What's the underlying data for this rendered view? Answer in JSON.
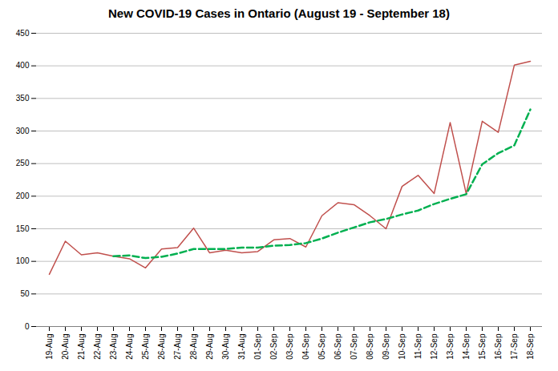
{
  "chart_data": {
    "type": "line",
    "title": "New COVID-19 Cases in Ontario (August 19 - September 18)",
    "categories": [
      "19-Aug",
      "20-Aug",
      "21-Aug",
      "22-Aug",
      "23-Aug",
      "24-Aug",
      "25-Aug",
      "26-Aug",
      "27-Aug",
      "28-Aug",
      "29-Aug",
      "30-Aug",
      "31-Aug",
      "01-Sep",
      "02-Sep",
      "03-Sep",
      "04-Sep",
      "05-Sep",
      "06-Sep",
      "07-Sep",
      "08-Sep",
      "09-Sep",
      "10-Sep",
      "11-Sep",
      "12-Sep",
      "13-Sep",
      "14-Sep",
      "15-Sep",
      "16-Sep",
      "17-Sep",
      "18-Sep"
    ],
    "series": [
      {
        "color": "#c0504d",
        "line_style": "solid",
        "values": [
          80,
          131,
          110,
          113,
          108,
          104,
          90,
          119,
          121,
          151,
          113,
          117,
          113,
          115,
          133,
          135,
          122,
          170,
          190,
          187,
          170,
          150,
          215,
          232,
          204,
          313,
          204,
          315,
          298,
          401,
          407
        ]
      },
      {
        "color": "#00b050",
        "line_style": "dashed",
        "values": [
          null,
          null,
          null,
          null,
          108,
          109,
          105,
          107,
          112,
          119,
          119,
          119,
          121,
          121,
          124,
          125,
          128,
          135,
          144,
          152,
          160,
          165,
          172,
          178,
          188,
          196,
          203,
          249,
          266,
          278,
          333
        ]
      }
    ],
    "ylim": [
      0,
      450
    ],
    "yticks": [
      0,
      50,
      100,
      150,
      200,
      250,
      300,
      350,
      400,
      450
    ],
    "grid": true
  }
}
